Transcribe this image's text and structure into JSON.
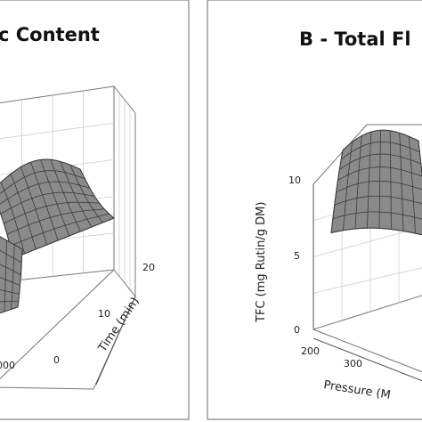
{
  "chart_data": [
    {
      "type": "surface3d",
      "title": "c Content",
      "axes": {
        "y": {
          "label": "Time (min)",
          "ticks": [
            "0",
            "10",
            "20"
          ]
        },
        "x": {
          "visible_tick": "000"
        }
      },
      "surface_color": "#8a8a8a",
      "mesh_color": "#3a3a3a"
    },
    {
      "type": "surface3d",
      "title": "B - Total Fl",
      "axes": {
        "z": {
          "label": "TFC (mg Rutin/g DM)",
          "ticks": [
            "0",
            "5",
            "10"
          ]
        },
        "x": {
          "label": "Pressure (M",
          "ticks": [
            "200",
            "300"
          ]
        }
      },
      "surface_color": "#8a8a8a",
      "mesh_color": "#3a3a3a"
    }
  ]
}
